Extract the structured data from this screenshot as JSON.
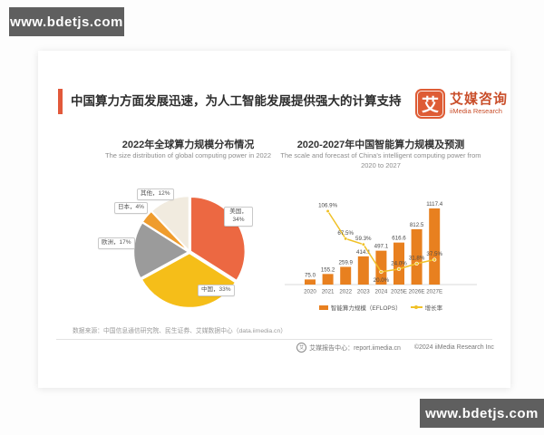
{
  "watermark": {
    "text": "www.bdetjs.com"
  },
  "header": {
    "title": "中国算力方面发展迅速，为人工智能发展提供强大的计算支持",
    "accent_color": "#E2593B",
    "logo": {
      "glyph": "艾",
      "name_cn": "艾媒咨询",
      "name_en": "iiMedia Research"
    }
  },
  "chart_data": [
    {
      "type": "pie",
      "title": "2022年全球算力规模分布情况",
      "subtitle": "The size distribution of global computing power in 2022",
      "unit": "%",
      "slices": [
        {
          "label": "美国",
          "value": 34,
          "display": "美国，34%",
          "color": "#EC6842"
        },
        {
          "label": "中国",
          "value": 33,
          "display": "中国，33%",
          "color": "#F5BE19"
        },
        {
          "label": "欧洲",
          "value": 17,
          "display": "欧洲，17%",
          "color": "#9B9B9B"
        },
        {
          "label": "日本",
          "value": 4,
          "display": "日本，4%",
          "color": "#EF9C2D"
        },
        {
          "label": "其他",
          "value": 12,
          "display": "其他，12%",
          "color": "#F1EBDF"
        }
      ]
    },
    {
      "type": "bar+line",
      "title": "2020-2027年中国智能算力规模及预测",
      "subtitle": "The scale and forecast of China's intelligent computing power from 2020 to 2027",
      "categories": [
        "2020",
        "2021",
        "2022",
        "2023",
        "2024",
        "2025E",
        "2026E",
        "2027E"
      ],
      "series": [
        {
          "name": "智能算力规模（EFLOPS）",
          "type": "bar",
          "color": "#E8801F",
          "values": [
            75.0,
            155.2,
            259.9,
            414.1,
            497.1,
            616.6,
            812.5,
            1117.4
          ]
        },
        {
          "name": "增长率",
          "type": "line",
          "color": "#F0C128",
          "unit": "%",
          "values": [
            null,
            106.9,
            67.5,
            59.3,
            20.0,
            24.0,
            31.8,
            37.5
          ]
        }
      ],
      "legend_position": "bottom",
      "ylim": [
        0,
        1200
      ]
    }
  ],
  "footer": {
    "source": "数据来源：中国信息通信研究院、民生证券、艾媒数据中心（data.iimedia.cn）",
    "report_center": "艾媒报告中心：report.iimedia.cn",
    "copyright": "©2024 iiMedia Research Inc"
  }
}
